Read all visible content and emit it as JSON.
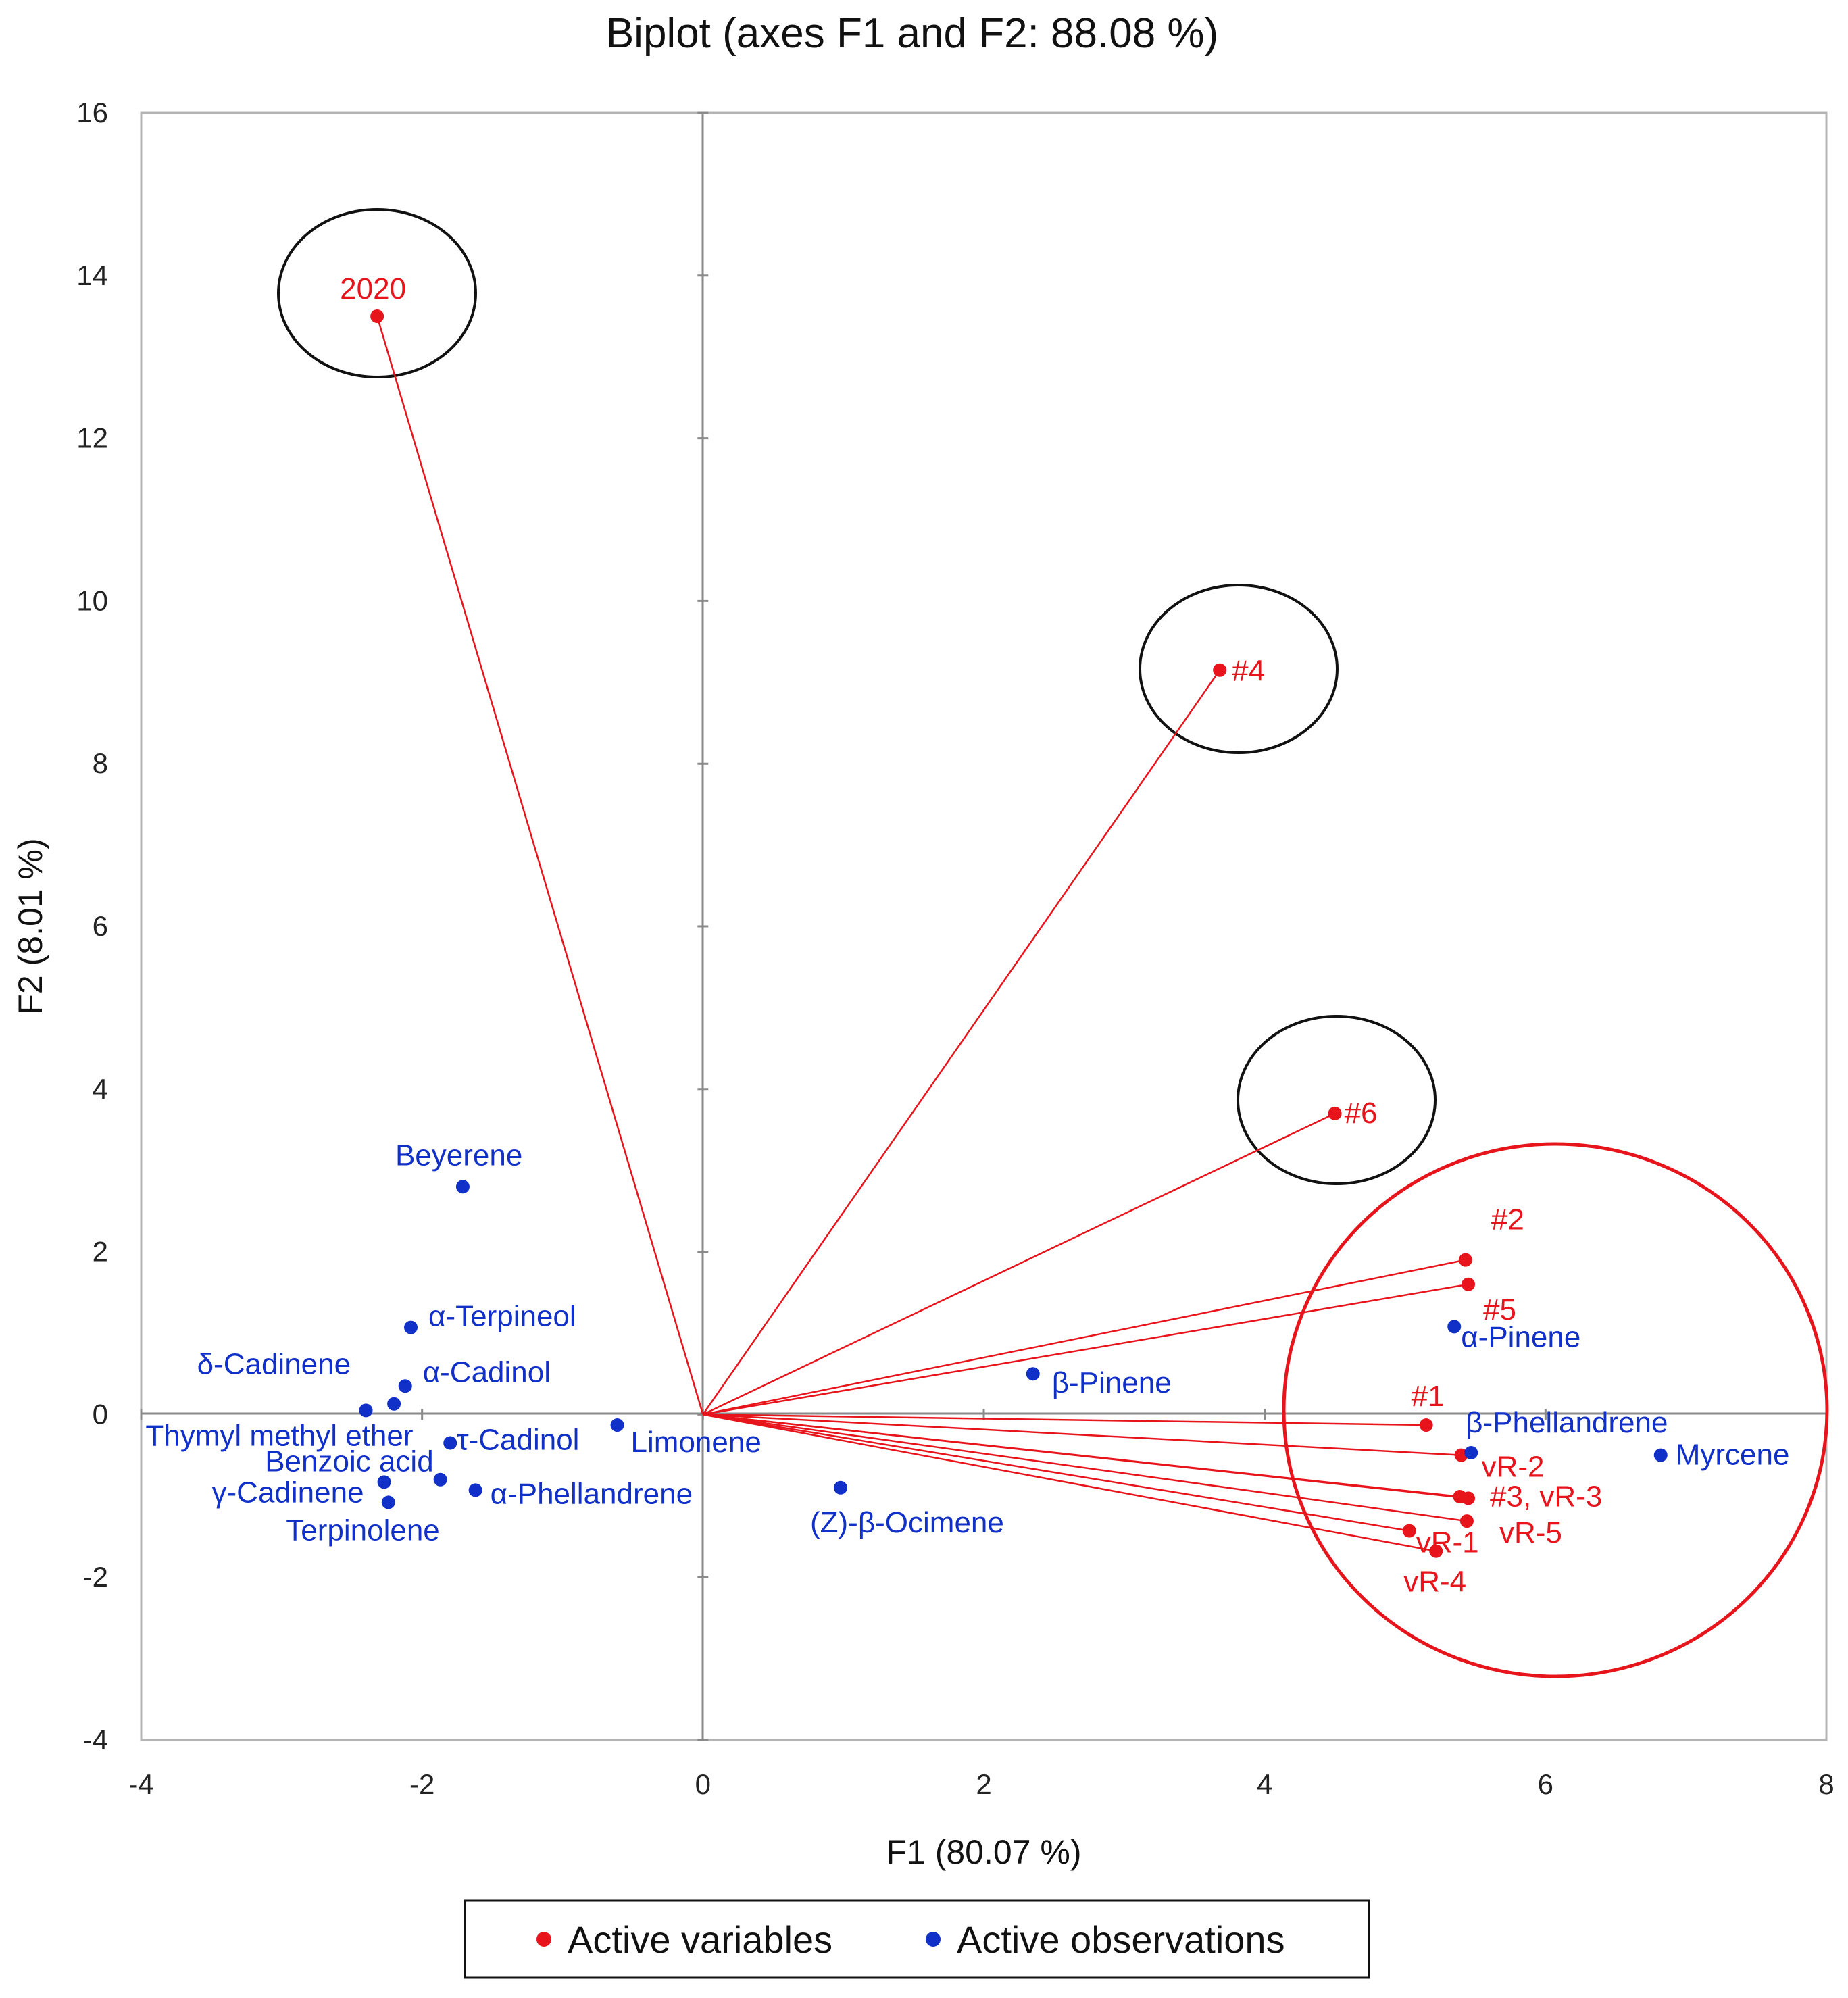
{
  "chart_data": {
    "type": "scatter",
    "subtype": "biplot",
    "title": "Biplot (axes F1 and F2: 88.08 %)",
    "xlabel": "F1 (80.07 %)",
    "ylabel": "F2 (8.01 %)",
    "xlim": [
      -4,
      8
    ],
    "ylim": [
      -4,
      16
    ],
    "xticks": [
      "-4",
      "-2",
      "0",
      "2",
      "4",
      "6",
      "8"
    ],
    "yticks": [
      "-4",
      "-2",
      "0",
      "2",
      "4",
      "6",
      "8",
      "10",
      "12",
      "14",
      "16"
    ],
    "legend": {
      "placement": "bottom",
      "entries": [
        {
          "name": "Active variables",
          "color": "#e8141c"
        },
        {
          "name": "Active observations",
          "color": "#1030c8"
        }
      ]
    },
    "series": [
      {
        "name": "Active variables",
        "color": "#e8141c",
        "vectors_from_origin": true,
        "points": [
          {
            "label": "2020",
            "x": -2.32,
            "y": 13.5
          },
          {
            "label": "#4",
            "x": 3.68,
            "y": 9.15
          },
          {
            "label": "#6",
            "x": 4.5,
            "y": 3.7
          },
          {
            "label": "#2",
            "x": 5.43,
            "y": 1.9
          },
          {
            "label": "#5",
            "x": 5.45,
            "y": 1.6
          },
          {
            "label": "#1",
            "x": 5.15,
            "y": -0.13
          },
          {
            "label": "vR-2",
            "x": 5.4,
            "y": -0.5
          },
          {
            "label": "#3, vR-3",
            "x": 5.45,
            "y": -1.03
          },
          {
            "label": "",
            "x": 5.39,
            "y": -1.01
          },
          {
            "label": "vR-5",
            "x": 5.44,
            "y": -1.31
          },
          {
            "label": "vR-1",
            "x": 5.03,
            "y": -1.43
          },
          {
            "label": "vR-4",
            "x": 5.22,
            "y": -1.68
          }
        ]
      },
      {
        "name": "Active observations",
        "color": "#1030c8",
        "points": [
          {
            "label": "Beyerene",
            "x": -1.71,
            "y": 2.8
          },
          {
            "label": "α-Terpineol",
            "x": -2.08,
            "y": 1.07
          },
          {
            "label": "α-Cadinol",
            "x": -2.12,
            "y": 0.35
          },
          {
            "label": "δ-Cadinene",
            "x": -2.2,
            "y": 0.13
          },
          {
            "label": "Thymyl methyl ether",
            "x": -2.4,
            "y": 0.05
          },
          {
            "label": "τ-Cadinol",
            "x": -1.8,
            "y": -0.35
          },
          {
            "label": "Benzoic acid",
            "x": -1.87,
            "y": -0.8
          },
          {
            "label": "γ-Cadinene",
            "x": -2.27,
            "y": -0.83
          },
          {
            "label": "Terpinolene",
            "x": -2.24,
            "y": -1.08
          },
          {
            "label": "α-Phellandrene",
            "x": -1.62,
            "y": -0.93
          },
          {
            "label": "Limonene",
            "x": -0.61,
            "y": -0.13
          },
          {
            "label": "(Z)-β-Ocimene",
            "x": 0.98,
            "y": -0.9
          },
          {
            "label": "β-Pinene",
            "x": 2.35,
            "y": 0.5
          },
          {
            "label": "α-Pinene",
            "x": 5.35,
            "y": 1.08
          },
          {
            "label": "β-Phellandrene",
            "x": 5.47,
            "y": -0.47
          },
          {
            "label": "Myrcene",
            "x": 6.82,
            "y": -0.5
          }
        ]
      }
    ],
    "annotations": [
      {
        "type": "circle",
        "around": "2020",
        "color": "#111111"
      },
      {
        "type": "circle",
        "around": "#4",
        "color": "#111111"
      },
      {
        "type": "circle",
        "around": "#6",
        "color": "#111111"
      },
      {
        "type": "circle",
        "around": "#2, #5, #1, vR-2, #3, vR-3, vR-5, vR-1, vR-4",
        "color": "#e8141c"
      }
    ]
  }
}
